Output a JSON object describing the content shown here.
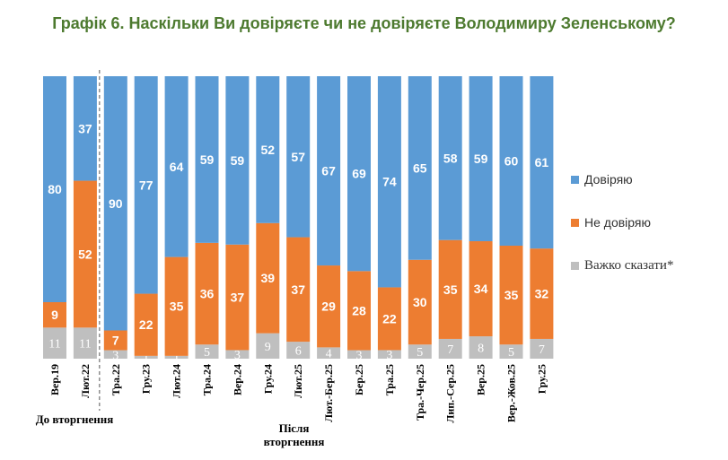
{
  "chart_data": {
    "type": "bar",
    "stacked": true,
    "title": "Графік 6. Наскільки Ви довіряєте чи не довіряєте Володимиру Зеленському?",
    "categories": [
      "Вер.19",
      "Лют.22",
      "Тра.22",
      "Гру.23",
      "Лют.24",
      "Тра.24",
      "Вер.24",
      "Гру.24",
      "Лют.25",
      "Лют.-Бер.25",
      "Бер.25",
      "Тра.25",
      "Тра.-Чер.25",
      "Лип.-Сер.25",
      "Вер.25",
      "Вер.-Жов.25",
      "Гру.25"
    ],
    "series": [
      {
        "name": "Довіряю",
        "color": "#5b9bd5",
        "values": [
          80,
          37,
          90,
          77,
          64,
          59,
          59,
          52,
          57,
          67,
          69,
          74,
          65,
          58,
          59,
          60,
          61
        ]
      },
      {
        "name": "Не довіряю",
        "color": "#ed7d31",
        "values": [
          9,
          52,
          7,
          22,
          35,
          36,
          37,
          39,
          37,
          29,
          28,
          22,
          30,
          35,
          34,
          35,
          32
        ]
      },
      {
        "name": "Важко сказати*",
        "color": "#bfbfbf",
        "values": [
          11,
          11,
          3,
          1,
          1,
          5,
          3,
          9,
          6,
          4,
          3,
          3,
          5,
          7,
          8,
          5,
          7
        ]
      }
    ],
    "ylim": [
      0,
      100
    ],
    "group_labels": [
      "До вторгнення",
      "Після вторгнення"
    ],
    "legend_position": "right"
  }
}
